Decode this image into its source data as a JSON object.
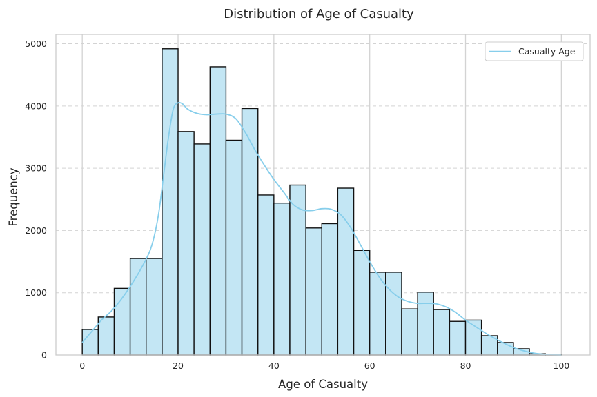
{
  "chart_data": {
    "type": "bar",
    "title": "Distribution of Age of Casualty",
    "xlabel": "Age of Casualty",
    "ylabel": "Frequency",
    "xlim": [
      -5.5,
      106
    ],
    "ylim": [
      0,
      5150
    ],
    "xticks": [
      0,
      20,
      40,
      60,
      80,
      100
    ],
    "yticks": [
      0,
      1000,
      2000,
      3000,
      4000,
      5000
    ],
    "grid": {
      "x": true,
      "y": true,
      "y_style": "dashed"
    },
    "legend": {
      "placement": "top-right",
      "entries": [
        "Casualty Age"
      ]
    },
    "colors": {
      "bar_fill": "#c3e6f4",
      "bar_edge": "#111111",
      "kde_line": "#87ceeb",
      "grid": "#d3d3d3",
      "frame": "#cccccc"
    },
    "bins": {
      "edges": [
        0,
        3.33,
        6.67,
        10,
        13.33,
        16.67,
        20,
        23.33,
        26.67,
        30,
        33.33,
        36.67,
        40,
        43.33,
        46.67,
        50,
        53.33,
        56.67,
        60,
        63.33,
        66.67,
        70,
        73.33,
        76.67,
        80,
        83.33,
        86.67,
        90,
        93.33,
        96.67,
        100
      ],
      "counts": [
        410,
        610,
        1070,
        1550,
        1550,
        4920,
        3590,
        3390,
        4630,
        3450,
        3960,
        2570,
        2440,
        2730,
        2040,
        2110,
        2680,
        1680,
        1330,
        1330,
        740,
        1010,
        730,
        540,
        560,
        310,
        200,
        100,
        20,
        5
      ]
    },
    "series": [
      {
        "name": "Casualty Age",
        "type": "kde",
        "x": [
          0,
          2,
          4,
          6,
          8,
          10,
          12,
          14,
          15,
          16,
          17,
          18,
          19,
          20,
          21,
          22,
          24,
          26,
          28,
          30,
          32,
          34,
          36,
          38,
          40,
          42,
          44,
          46,
          48,
          50,
          52,
          54,
          56,
          58,
          60,
          62,
          64,
          66,
          68,
          70,
          72,
          74,
          76,
          78,
          80,
          82,
          84,
          86,
          88,
          90,
          92,
          94,
          96,
          98,
          100
        ],
        "y": [
          200,
          380,
          560,
          700,
          880,
          1100,
          1350,
          1650,
          1900,
          2300,
          2900,
          3500,
          3950,
          4050,
          4030,
          3950,
          3880,
          3860,
          3870,
          3870,
          3800,
          3580,
          3300,
          3050,
          2820,
          2620,
          2420,
          2330,
          2320,
          2350,
          2340,
          2250,
          2050,
          1780,
          1500,
          1250,
          1060,
          930,
          860,
          830,
          830,
          820,
          770,
          680,
          560,
          460,
          360,
          270,
          190,
          120,
          70,
          35,
          15,
          5,
          0
        ]
      }
    ]
  }
}
